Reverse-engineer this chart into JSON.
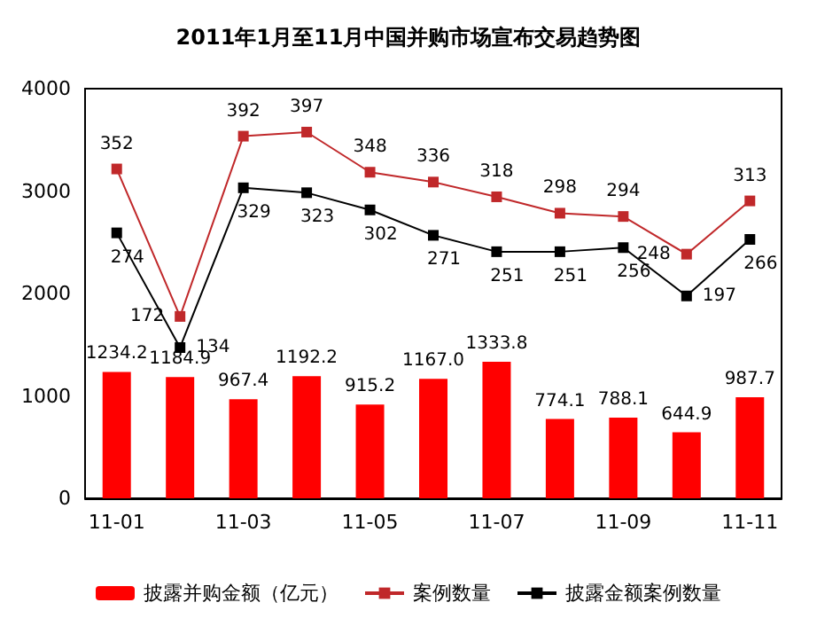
{
  "chart_data": {
    "type": "bar",
    "title": "2011年1月至11月中国并购市场宣布交易趋势图",
    "categories": [
      "11-01",
      null,
      "11-03",
      null,
      "11-05",
      null,
      "11-07",
      null,
      "11-09",
      null,
      "11-11"
    ],
    "series": [
      {
        "name": "披露并购金额（亿元）",
        "color": "#ff0000",
        "values": [
          1234.2,
          1184.9,
          967.4,
          1192.2,
          915.2,
          1167,
          1333.8,
          774.1,
          788.1,
          644.9,
          987.7
        ],
        "value_labels": [
          "1234.2",
          "1184.9",
          "967.4",
          "1192.2",
          "915.2",
          "1167.0",
          "1333.8",
          "774.1",
          "788.1",
          "644.9",
          "987.7"
        ]
      },
      {
        "name": "案例数量",
        "type": "line",
        "axis": "y2",
        "color": "#c0282a",
        "values": [
          352,
          172,
          392,
          397,
          348,
          336,
          318,
          298,
          294,
          248,
          313
        ]
      },
      {
        "name": "披露金额案例数量",
        "type": "line",
        "axis": "y2",
        "color": "#000000",
        "values": [
          274,
          134,
          329,
          323,
          302,
          271,
          251,
          251,
          256,
          197,
          266
        ]
      }
    ],
    "ylim": [
      0,
      4000
    ],
    "yticks": [
      0,
      1000,
      2000,
      3000,
      4000
    ],
    "y2lim": [
      -50,
      450
    ],
    "data_labels": true,
    "marker": "square",
    "grid": false,
    "legend": "bottom"
  }
}
